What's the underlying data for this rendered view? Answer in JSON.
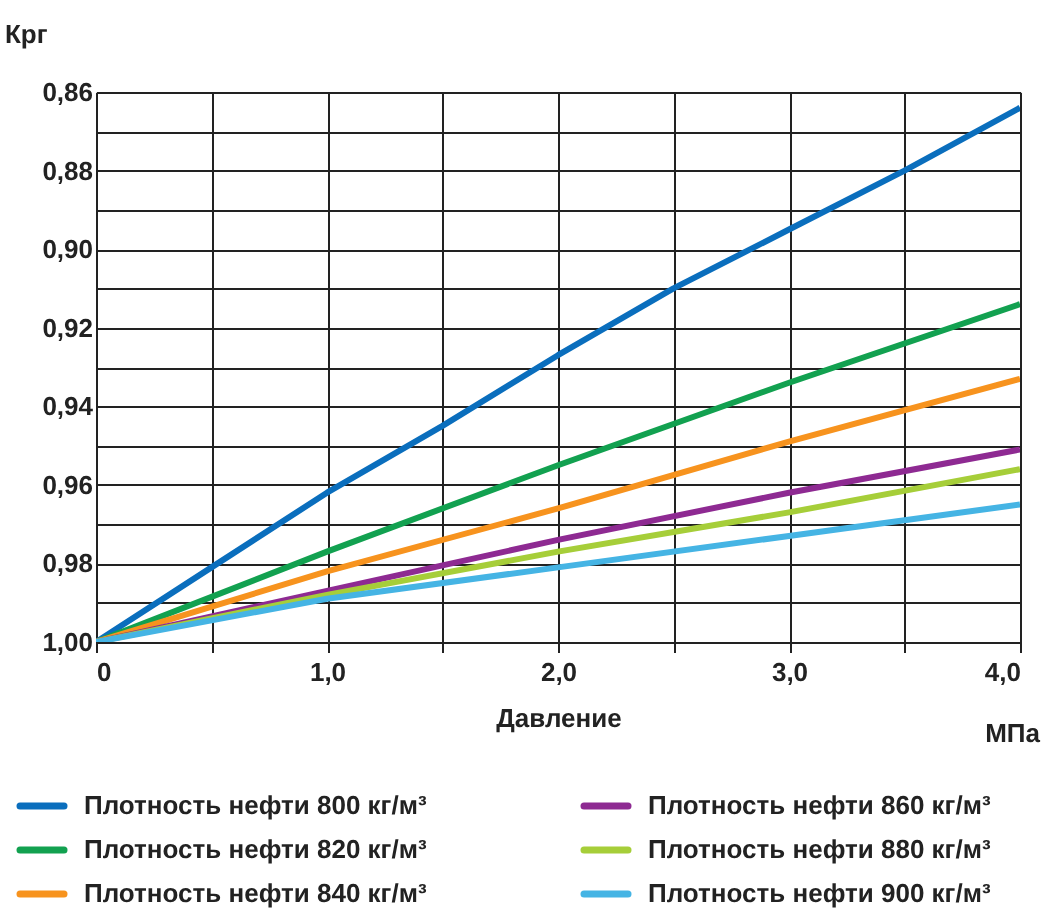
{
  "chart_data": {
    "type": "line",
    "xlabel": "Давление",
    "ylabel": "Крг",
    "annotations": [
      "МПа"
    ],
    "x": [
      0,
      0.5,
      1,
      1.5,
      2,
      2.5,
      3,
      3.5,
      4
    ],
    "series": [
      {
        "name": "Плотность нефти 800 кг/м³",
        "color": "#0a6ebd",
        "values": [
          1.0,
          0.981,
          0.962,
          0.945,
          0.927,
          0.91,
          0.895,
          0.88,
          0.864
        ]
      },
      {
        "name": "Плотность нефти 820 кг/м³",
        "color": "#12a150",
        "x": [
          0,
          1,
          2,
          3,
          4
        ],
        "values": [
          1.0,
          0.977,
          0.955,
          0.934,
          0.914
        ]
      },
      {
        "name": "Плотность нефти 840 кг/м³",
        "color": "#f7931e",
        "x": [
          0,
          1,
          2,
          3,
          4
        ],
        "values": [
          1.0,
          0.982,
          0.966,
          0.949,
          0.933
        ]
      },
      {
        "name": "Плотность нефти 860 кг/м³",
        "color": "#8e2a92",
        "x": [
          0,
          1,
          2,
          3,
          4
        ],
        "values": [
          1.0,
          0.987,
          0.974,
          0.962,
          0.951
        ]
      },
      {
        "name": "Плотность нефти 880 кг/м³",
        "color": "#a6ce39",
        "x": [
          0,
          1,
          2,
          3,
          4
        ],
        "values": [
          1.0,
          0.988,
          0.977,
          0.967,
          0.956
        ]
      },
      {
        "name": "Плотность нефти 900 кг/м³",
        "color": "#45b4e4",
        "x": [
          0,
          1,
          2,
          3,
          4
        ],
        "values": [
          1.0,
          0.989,
          0.981,
          0.973,
          0.965
        ]
      }
    ],
    "xlim": [
      0,
      4
    ],
    "ylim": [
      1.0,
      0.86
    ],
    "xticks": [
      {
        "value": 0,
        "label": "0"
      },
      {
        "value": 0.5,
        "label": null
      },
      {
        "value": 1,
        "label": "1,0"
      },
      {
        "value": 1.5,
        "label": null
      },
      {
        "value": 2,
        "label": "2,0"
      },
      {
        "value": 2.5,
        "label": null
      },
      {
        "value": 3,
        "label": "3,0"
      },
      {
        "value": 3.5,
        "label": null
      },
      {
        "value": 4,
        "label": "4,0"
      }
    ],
    "yticks": [
      {
        "value": 0.86,
        "label": "0,86"
      },
      {
        "value": 0.87,
        "label": null
      },
      {
        "value": 0.88,
        "label": "0,88"
      },
      {
        "value": 0.89,
        "label": null
      },
      {
        "value": 0.9,
        "label": "0,90"
      },
      {
        "value": 0.91,
        "label": null
      },
      {
        "value": 0.92,
        "label": "0,92"
      },
      {
        "value": 0.93,
        "label": null
      },
      {
        "value": 0.94,
        "label": "0,94"
      },
      {
        "value": 0.95,
        "label": null
      },
      {
        "value": 0.96,
        "label": "0,96"
      },
      {
        "value": 0.97,
        "label": null
      },
      {
        "value": 0.98,
        "label": "0,98"
      },
      {
        "value": 0.99,
        "label": null
      },
      {
        "value": 1.0,
        "label": "1,00"
      }
    ],
    "grid": true,
    "legend": "bottom",
    "line_style": "solid",
    "marker": "none"
  }
}
